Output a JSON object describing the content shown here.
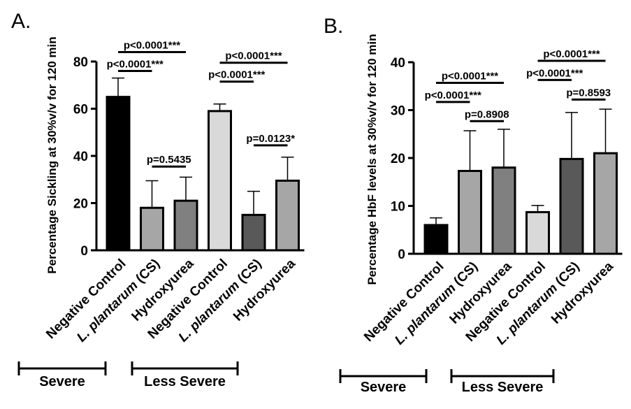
{
  "chart_data": [
    {
      "type": "bar",
      "panel_label": "A.",
      "ylabel": "Percentage Sickling at 30%v/v for 120 min",
      "ylim": [
        0,
        80
      ],
      "yticks": [
        0,
        20,
        40,
        60,
        80
      ],
      "categories": [
        "Negative Control",
        "L. plantarum (CS)",
        "Hydroxyurea",
        "Negative Control",
        "L. plantarum (CS)",
        "Hydroxyurea"
      ],
      "values": [
        65,
        18,
        21,
        59,
        15,
        29.5
      ],
      "errors": [
        8,
        11.5,
        10,
        3,
        10,
        10
      ],
      "bar_colors": [
        "#000000",
        "#a6a6a6",
        "#808080",
        "#d9d9d9",
        "#595959",
        "#a6a6a6"
      ],
      "groups": [
        {
          "label": "Severe",
          "from": 0,
          "to": 2
        },
        {
          "label": "Less Severe",
          "from": 3,
          "to": 5
        }
      ],
      "comparisons": [
        {
          "a": 0,
          "b": 1,
          "label": "p<0.0001***",
          "y": 76
        },
        {
          "a": 0,
          "b": 2,
          "label": "p<0.0001***",
          "y": 84
        },
        {
          "a": 1,
          "b": 2,
          "label": "p=0.5435",
          "y": 35.5
        },
        {
          "a": 3,
          "b": 4,
          "label": "p<0.0001***",
          "y": 71.5
        },
        {
          "a": 3,
          "b": 5,
          "label": "p<0.0001***",
          "y": 79.5
        },
        {
          "a": 4,
          "b": 5,
          "label": "p=0.0123*",
          "y": 44.5
        }
      ]
    },
    {
      "type": "bar",
      "panel_label": "B.",
      "ylabel": "Percentage HbF levels at 30%v/v for 120 min",
      "ylim": [
        0,
        40
      ],
      "yticks": [
        0,
        10,
        20,
        30,
        40
      ],
      "categories": [
        "Negative Control",
        "L. plantarum (CS)",
        "Hydroxyurea",
        "Negative Control",
        "L. plantarum (CS)",
        "Hydroxyurea"
      ],
      "values": [
        6,
        17.3,
        18,
        8.7,
        19.8,
        21
      ],
      "errors": [
        1.5,
        8.4,
        8,
        1.4,
        9.7,
        9.2
      ],
      "bar_colors": [
        "#000000",
        "#a6a6a6",
        "#808080",
        "#d9d9d9",
        "#595959",
        "#a6a6a6"
      ],
      "groups": [
        {
          "label": "Severe",
          "from": 0,
          "to": 2
        },
        {
          "label": "Less Severe",
          "from": 3,
          "to": 5
        }
      ],
      "comparisons": [
        {
          "a": 0,
          "b": 1,
          "label": "p<0.0001***",
          "y": 31.7
        },
        {
          "a": 0,
          "b": 2,
          "label": "p<0.0001***",
          "y": 35.7
        },
        {
          "a": 1,
          "b": 2,
          "label": "p=0.8908",
          "y": 27.7
        },
        {
          "a": 3,
          "b": 4,
          "label": "p<0.0001***",
          "y": 36.3
        },
        {
          "a": 3,
          "b": 5,
          "label": "p<0.0001***",
          "y": 40.3
        },
        {
          "a": 4,
          "b": 5,
          "label": "p=0.8593",
          "y": 32.2
        }
      ]
    }
  ]
}
